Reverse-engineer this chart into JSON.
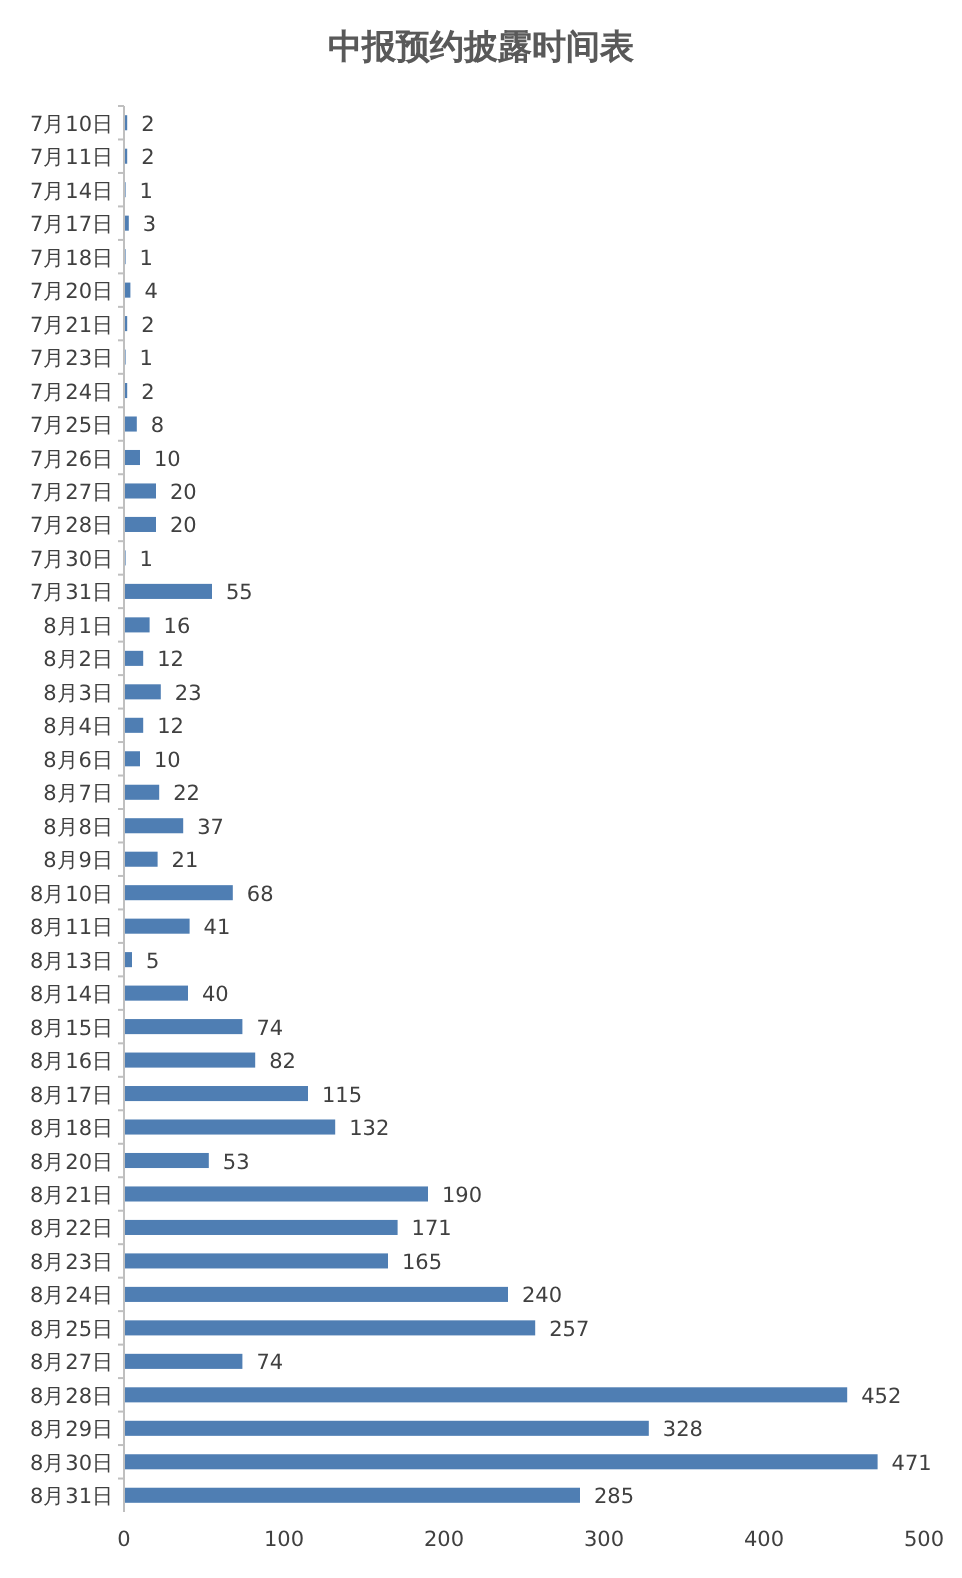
{
  "chart_data": {
    "type": "bar",
    "orientation": "horizontal",
    "title": "中报预约披露时间表",
    "categories": [
      "7月10日",
      "7月11日",
      "7月14日",
      "7月17日",
      "7月18日",
      "7月20日",
      "7月21日",
      "7月23日",
      "7月24日",
      "7月25日",
      "7月26日",
      "7月27日",
      "7月28日",
      "7月30日",
      "7月31日",
      "8月1日",
      "8月2日",
      "8月3日",
      "8月4日",
      "8月6日",
      "8月7日",
      "8月8日",
      "8月9日",
      "8月10日",
      "8月11日",
      "8月13日",
      "8月14日",
      "8月15日",
      "8月16日",
      "8月17日",
      "8月18日",
      "8月20日",
      "8月21日",
      "8月22日",
      "8月23日",
      "8月24日",
      "8月25日",
      "8月27日",
      "8月28日",
      "8月29日",
      "8月30日",
      "8月31日"
    ],
    "values": [
      2,
      2,
      1,
      3,
      1,
      4,
      2,
      1,
      2,
      8,
      10,
      20,
      20,
      1,
      55,
      16,
      12,
      23,
      12,
      10,
      22,
      37,
      21,
      68,
      41,
      5,
      40,
      74,
      82,
      115,
      132,
      53,
      190,
      171,
      165,
      240,
      257,
      74,
      452,
      328,
      471,
      285
    ],
    "color": "#4f7eb3",
    "data_labels": true,
    "xlim": [
      0,
      500
    ],
    "xticks": [
      0,
      100,
      200,
      300,
      400,
      500
    ],
    "grid": false
  }
}
